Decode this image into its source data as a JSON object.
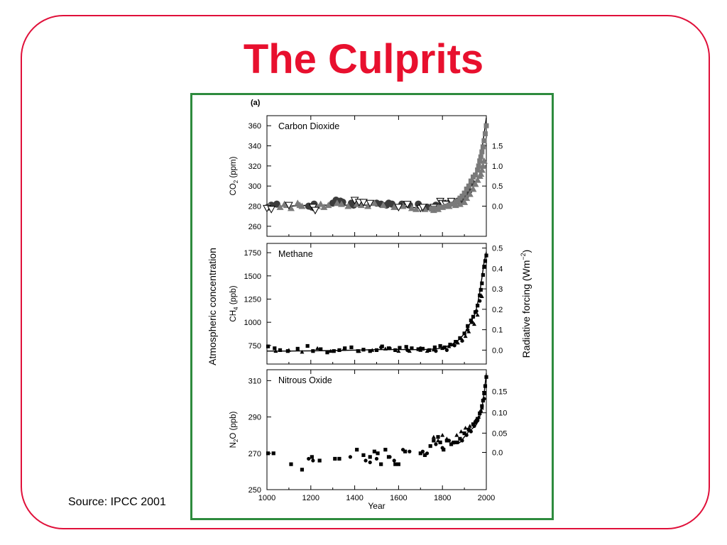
{
  "slide": {
    "title": "The Culprits",
    "source": "Source: IPCC 2001",
    "frame_color": "#e0103a",
    "title_color": "#e8102e",
    "figure_border_color": "#2e8b3e"
  },
  "chart_data": [
    {
      "type": "scatter",
      "panel_tag": "(a)",
      "title": "Carbon Dioxide",
      "ylabel": "CO2 (ppm)",
      "ylabel_left_shared": "Atmospheric concentration",
      "y2label": "Radiative forcing (Wm-2)",
      "xlabel": "",
      "xlim": [
        1000,
        2000
      ],
      "ylim": [
        250,
        370
      ],
      "y2lim": [
        0,
        1.5
      ],
      "yticks": [
        260,
        280,
        300,
        320,
        340,
        360
      ],
      "y2ticks": [
        "0.0",
        "0.5",
        "1.0",
        "1.5"
      ],
      "y2tick_values": [
        280,
        300,
        320,
        340
      ],
      "xticks": [
        1000,
        1200,
        1400,
        1600,
        1800,
        2000
      ],
      "grid": false,
      "series": [
        {
          "style": "line",
          "x": [
            1000,
            1100,
            1200,
            1300,
            1400,
            1500,
            1600,
            1700,
            1750,
            1800,
            1850,
            1880,
            1900,
            1920,
            1940,
            1950,
            1960,
            1970,
            1980,
            1990,
            2000
          ],
          "values": [
            280,
            280,
            281,
            281,
            281,
            281,
            280,
            278,
            278,
            281,
            284,
            288,
            294,
            302,
            310,
            312,
            317,
            325,
            337,
            352,
            368
          ]
        },
        {
          "style": "circle",
          "x": [
            1005,
            1020,
            1045,
            1190,
            1205,
            1215,
            1300,
            1315,
            1335,
            1345,
            1385,
            1395,
            1500,
            1520,
            1545,
            1555,
            1570,
            1615,
            1650,
            1690,
            1730,
            1770,
            1790,
            1825,
            1835,
            1850,
            1870,
            1890,
            1905,
            1920,
            1935
          ],
          "values": [
            279,
            281,
            282,
            280,
            279,
            282,
            283,
            286,
            285,
            284,
            283,
            281,
            283,
            282,
            281,
            283,
            282,
            282,
            281,
            282,
            279,
            281,
            280,
            282,
            284,
            283,
            285,
            286,
            290,
            295,
            303
          ]
        },
        {
          "style": "triangle-up",
          "x": [
            1010,
            1060,
            1080,
            1090,
            1110,
            1140,
            1150,
            1160,
            1230,
            1245,
            1260,
            1280,
            1320,
            1340,
            1370,
            1410,
            1430,
            1460,
            1490,
            1530,
            1580,
            1620,
            1660,
            1680,
            1720,
            1760,
            1780,
            1800,
            1830,
            1860,
            1880,
            1900,
            1910,
            1925,
            1940,
            1950,
            1960,
            1970,
            1975,
            1980,
            1985,
            1990
          ],
          "values": [
            280,
            279,
            282,
            281,
            278,
            283,
            281,
            280,
            280,
            282,
            279,
            281,
            283,
            282,
            280,
            282,
            281,
            280,
            283,
            281,
            279,
            280,
            278,
            277,
            277,
            276,
            277,
            279,
            280,
            281,
            282,
            284,
            288,
            292,
            297,
            302,
            306,
            310,
            312,
            316,
            320,
            325
          ]
        },
        {
          "style": "triangle-down-open",
          "x": [
            1000,
            1020,
            1100,
            1210,
            1220,
            1400,
            1420,
            1440,
            1470,
            1600,
            1640,
            1700,
            1710,
            1760,
            1790,
            1800,
            1815,
            1840
          ],
          "values": [
            278,
            277,
            281,
            279,
            276,
            286,
            284,
            284,
            283,
            279,
            282,
            278,
            279,
            279,
            285,
            283,
            282,
            285
          ]
        },
        {
          "style": "square",
          "x": [
            1750,
            1760,
            1775,
            1785,
            1800,
            1815,
            1830,
            1845,
            1860,
            1870,
            1880,
            1890,
            1900,
            1910,
            1920,
            1930,
            1940,
            1950,
            1960,
            1965,
            1970,
            1975,
            1980,
            1985,
            1990,
            1995,
            2000
          ],
          "values": [
            277,
            278,
            277,
            279,
            279,
            280,
            281,
            282,
            284,
            285,
            288,
            290,
            293,
            297,
            300,
            305,
            309,
            311,
            316,
            320,
            325,
            329,
            334,
            339,
            345,
            352,
            360
          ]
        }
      ]
    },
    {
      "type": "scatter",
      "title": "Methane",
      "ylabel": "CH4 (ppb)",
      "xlabel": "",
      "xlim": [
        1000,
        2000
      ],
      "ylim": [
        550,
        1850
      ],
      "yticks": [
        750,
        1000,
        1250,
        1500,
        1750
      ],
      "y2ticks": [
        "0.0",
        "0.1",
        "0.2",
        "0.3",
        "0.4",
        "0.5"
      ],
      "y2tick_values": [
        700,
        920,
        1140,
        1360,
        1580,
        1800
      ],
      "xticks": [
        1000,
        1200,
        1400,
        1600,
        1800,
        2000
      ],
      "grid": false,
      "series": [
        {
          "style": "line",
          "x": [
            1000,
            1100,
            1200,
            1300,
            1400,
            1500,
            1600,
            1700,
            1750,
            1800,
            1850,
            1880,
            1900,
            1920,
            1940,
            1950,
            1960,
            1970,
            1980,
            1990,
            2000
          ],
          "values": [
            690,
            690,
            692,
            695,
            700,
            705,
            706,
            705,
            710,
            720,
            770,
            820,
            880,
            960,
            1050,
            1100,
            1200,
            1320,
            1480,
            1650,
            1760
          ]
        },
        {
          "style": "square",
          "x": [
            1005,
            1035,
            1060,
            1095,
            1140,
            1185,
            1210,
            1245,
            1275,
            1305,
            1330,
            1355,
            1385,
            1415,
            1440,
            1470,
            1500,
            1525,
            1555,
            1585,
            1605,
            1635,
            1660,
            1690,
            1710,
            1740,
            1765,
            1790,
            1810,
            1835,
            1860,
            1880,
            1900,
            1915,
            1930,
            1940,
            1950,
            1960,
            1970,
            1975,
            1980,
            1985,
            1990,
            1995,
            2000
          ],
          "values": [
            740,
            720,
            700,
            690,
            715,
            745,
            690,
            710,
            675,
            690,
            700,
            720,
            730,
            690,
            705,
            690,
            700,
            740,
            720,
            700,
            725,
            735,
            720,
            710,
            715,
            700,
            730,
            745,
            730,
            760,
            790,
            830,
            880,
            960,
            1020,
            1060,
            1110,
            1180,
            1290,
            1350,
            1420,
            1510,
            1600,
            1660,
            1720
          ]
        },
        {
          "style": "triangle-up",
          "x": [
            1040,
            1100,
            1160,
            1230,
            1290,
            1350,
            1420,
            1480,
            1540,
            1600,
            1650,
            1700,
            1730,
            1760,
            1800,
            1830,
            1850,
            1870,
            1890,
            1905,
            1920,
            1945,
            1960,
            1980
          ],
          "values": [
            690,
            700,
            680,
            720,
            690,
            710,
            690,
            700,
            715,
            690,
            690,
            700,
            690,
            705,
            720,
            740,
            760,
            780,
            810,
            850,
            900,
            980,
            1080,
            1280
          ]
        },
        {
          "style": "circle",
          "x": [
            1520,
            1560,
            1640,
            1700,
            1770,
            1820,
            1855,
            1890,
            1915,
            1935,
            1955,
            1970
          ],
          "values": [
            730,
            720,
            700,
            720,
            690,
            700,
            750,
            800,
            920,
            1000,
            1120,
            1230
          ]
        }
      ]
    },
    {
      "type": "scatter",
      "title": "Nitrous Oxide",
      "ylabel": "N2O (ppb)",
      "xlabel": "Year",
      "xlim": [
        1000,
        2000
      ],
      "ylim": [
        250,
        316
      ],
      "yticks": [
        250,
        270,
        290,
        310
      ],
      "y2ticks": [
        "0.0",
        "0.05",
        "0.10",
        "0.15"
      ],
      "y2tick_values": [
        270.5,
        281.1,
        292.3,
        304.1
      ],
      "xticks": [
        1000,
        1200,
        1400,
        1600,
        1800,
        2000
      ],
      "grid": false,
      "series": [
        {
          "style": "line",
          "x": [
            1850,
            1880,
            1900,
            1920,
            1940,
            1950,
            1960,
            1970,
            1980,
            1990,
            2000
          ],
          "values": [
            275,
            276,
            279,
            282,
            284,
            285,
            287,
            290,
            295,
            303,
            314
          ]
        },
        {
          "style": "square",
          "x": [
            1005,
            1030,
            1110,
            1160,
            1205,
            1240,
            1310,
            1330,
            1410,
            1440,
            1470,
            1490,
            1505,
            1520,
            1540,
            1555,
            1585,
            1600,
            1630,
            1700,
            1720,
            1745,
            1760,
            1780,
            1790,
            1805,
            1820,
            1840,
            1860,
            1880,
            1900,
            1920,
            1940,
            1950,
            1960,
            1970,
            1980,
            1985,
            1990,
            1995,
            2000
          ],
          "values": [
            270,
            270,
            264,
            261,
            268,
            266,
            267,
            267,
            272,
            269,
            268,
            271,
            270,
            264,
            272,
            268,
            264,
            264,
            271,
            270,
            269,
            274,
            277,
            279,
            276,
            272,
            277,
            275,
            276,
            278,
            281,
            283,
            286,
            287,
            289,
            292,
            296,
            299,
            303,
            307,
            312
          ]
        },
        {
          "style": "circle",
          "x": [
            1190,
            1210,
            1380,
            1450,
            1470,
            1500,
            1560,
            1580,
            1620,
            1650,
            1710,
            1730,
            1770,
            1800,
            1830,
            1850,
            1870,
            1890,
            1910,
            1930,
            1945,
            1960,
            1975,
            1990
          ],
          "values": [
            267,
            266,
            268,
            266,
            265,
            267,
            268,
            266,
            272,
            271,
            271,
            270,
            275,
            273,
            277,
            276,
            276,
            277,
            280,
            282,
            285,
            288,
            293,
            300
          ]
        },
        {
          "style": "triangle-up",
          "x": [
            1760,
            1780,
            1800,
            1820,
            1845,
            1865,
            1885,
            1905,
            1925,
            1950,
            1965,
            1980
          ],
          "values": [
            279,
            277,
            280,
            278,
            276,
            280,
            282,
            284,
            285,
            288,
            290,
            295
          ]
        }
      ]
    }
  ]
}
